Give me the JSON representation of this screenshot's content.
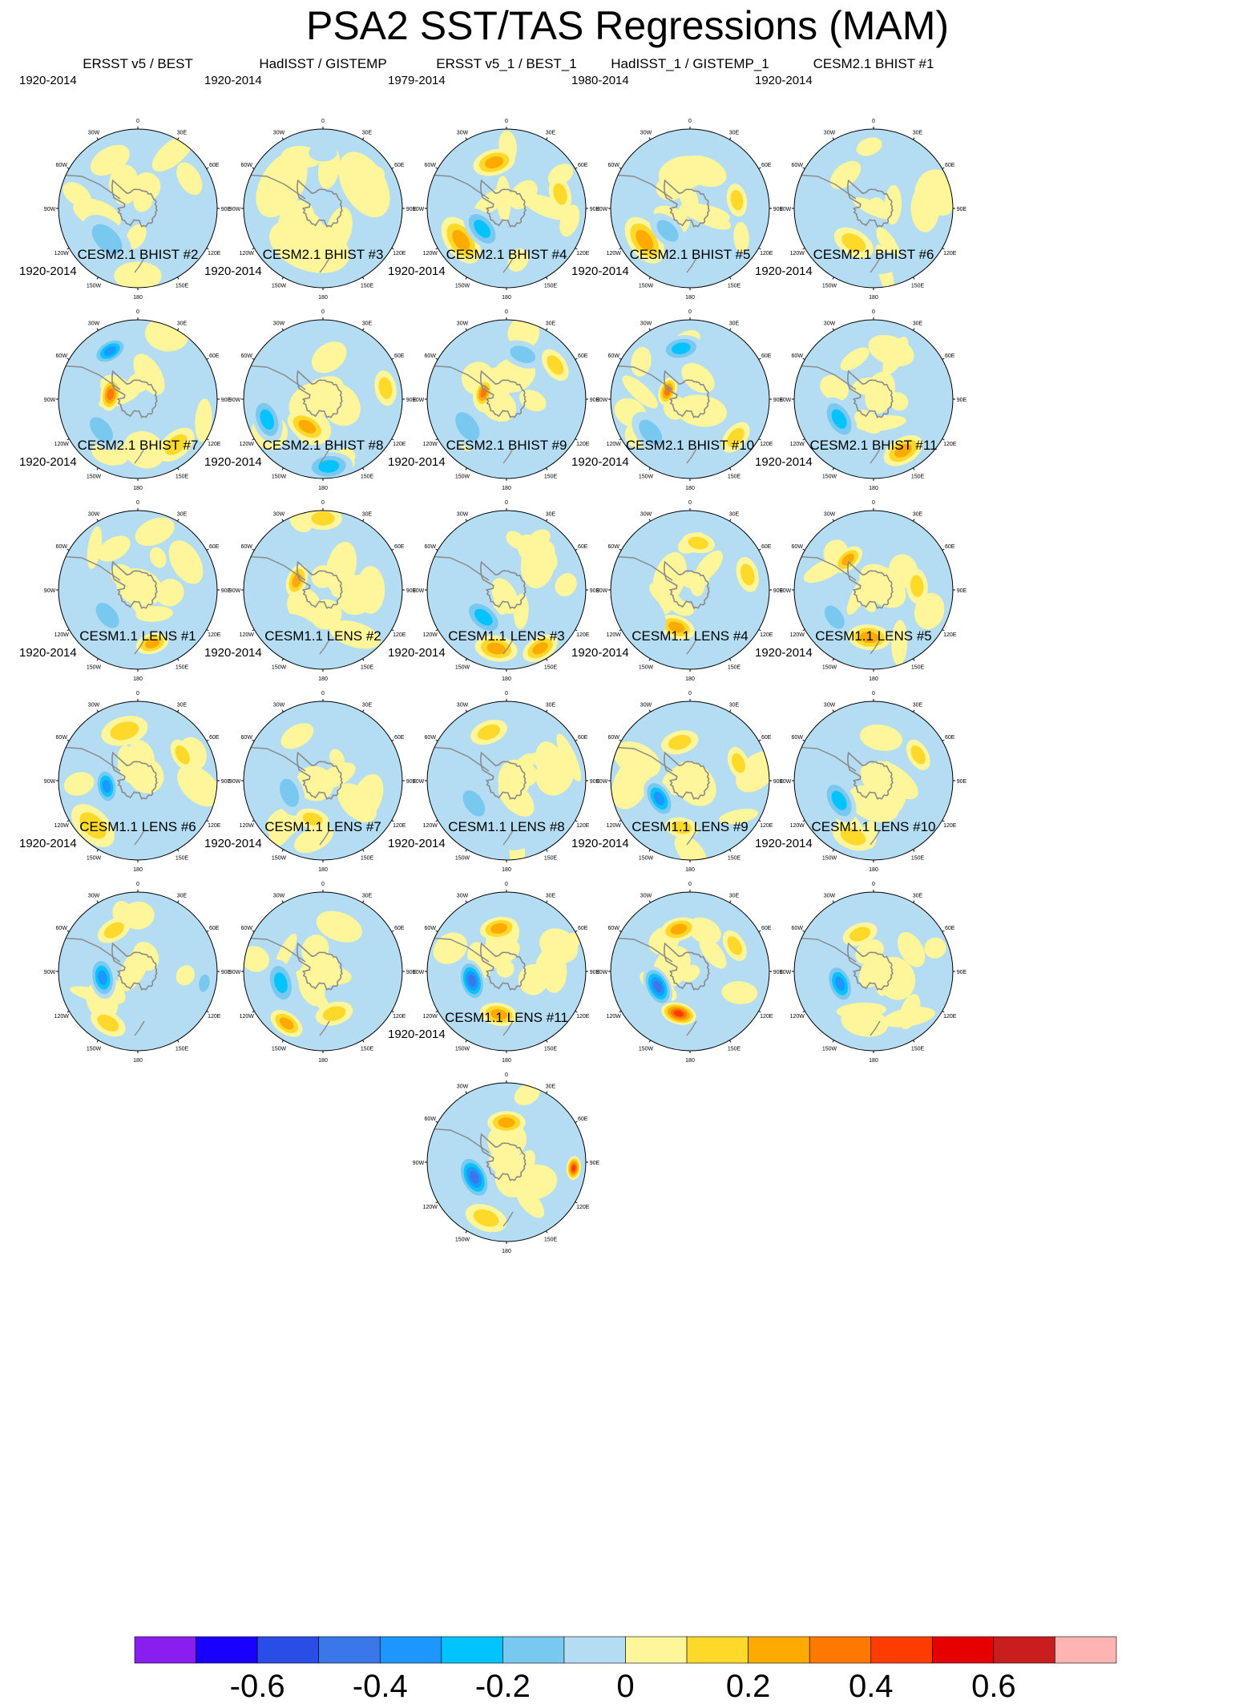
{
  "title": "PSA2 SST/TAS Regressions (MAM)",
  "colors": {
    "coast": "#8a8a8a",
    "outline": "#000000",
    "levels": [
      "#8a1ef0",
      "#1a00ff",
      "#2a4de6",
      "#3a78ea",
      "#1e96ff",
      "#00c3ff",
      "#78c8f0",
      "#b4dcf2",
      "#fff59a",
      "#ffd92a",
      "#ffaa00",
      "#ff7800",
      "#ff3c00",
      "#e60000",
      "#c81e1e",
      "#ffb4b4"
    ]
  },
  "lon_labels": [
    "0",
    "30E",
    "60E",
    "90E",
    "120E",
    "150E",
    "180",
    "150W",
    "120W",
    "90W",
    "60W",
    "30W"
  ],
  "colorbar": {
    "ticks": [
      "-0.6",
      "-0.4",
      "-0.2",
      "0",
      "0.2",
      "0.4",
      "0.6"
    ]
  },
  "chart_data": [
    {
      "type": "heatmap",
      "title": "ERSST v5 / BEST",
      "years": "1920-2014",
      "projection": "south polar stereographic",
      "features": [
        {
          "lon": 225,
          "r": 0.55,
          "level": -0.2,
          "size": 0.25
        },
        {
          "lon": 60,
          "r": 0.75,
          "level": 0.1,
          "size": 0.15
        },
        {
          "lon": 330,
          "r": 0.7,
          "level": 0.1,
          "size": 0.18
        },
        {
          "lon": 180,
          "r": 0.85,
          "level": 0.1,
          "size": 0.2
        }
      ]
    },
    {
      "type": "heatmap",
      "title": "HadISST / GISTEMP",
      "years": "1920-2014",
      "projection": "south polar stereographic",
      "features": [
        {
          "lon": 200,
          "r": 0.5,
          "level": 0.1,
          "size": 0.35
        },
        {
          "lon": 60,
          "r": 0.6,
          "level": 0.1,
          "size": 0.3
        },
        {
          "lon": 300,
          "r": 0.6,
          "level": 0.1,
          "size": 0.3
        },
        {
          "lon": 0,
          "r": 0.7,
          "level": -0.1,
          "size": 0.12
        }
      ]
    },
    {
      "type": "heatmap",
      "title": "ERSST v5_1 / BEST_1",
      "years": "1979-2014",
      "projection": "south polar stereographic",
      "features": [
        {
          "lon": 345,
          "r": 0.6,
          "level": 0.3,
          "size": 0.18
        },
        {
          "lon": 235,
          "r": 0.7,
          "level": 0.3,
          "size": 0.22
        },
        {
          "lon": 230,
          "r": 0.4,
          "level": -0.3,
          "size": 0.2
        },
        {
          "lon": 75,
          "r": 0.7,
          "level": 0.2,
          "size": 0.15
        }
      ]
    },
    {
      "type": "heatmap",
      "title": "HadISST_1 / GISTEMP_1",
      "years": "1980-2014",
      "projection": "south polar stereographic",
      "features": [
        {
          "lon": 235,
          "r": 0.7,
          "level": 0.3,
          "size": 0.22
        },
        {
          "lon": 225,
          "r": 0.4,
          "level": -0.2,
          "size": 0.18
        },
        {
          "lon": 20,
          "r": 0.5,
          "level": 0.1,
          "size": 0.2
        },
        {
          "lon": 80,
          "r": 0.6,
          "level": 0.2,
          "size": 0.14
        }
      ]
    },
    {
      "type": "heatmap",
      "title": "CESM2.1 BHIST #1",
      "years": "1920-2014",
      "projection": "south polar stereographic",
      "features": [
        {
          "lon": 210,
          "r": 0.5,
          "level": 0.2,
          "size": 0.18
        },
        {
          "lon": 90,
          "r": 0.65,
          "level": 0.1,
          "size": 0.2
        },
        {
          "lon": 320,
          "r": 0.55,
          "level": 0.1,
          "size": 0.15
        },
        {
          "lon": 170,
          "r": 0.7,
          "level": -0.1,
          "size": 0.15
        }
      ]
    },
    {
      "type": "heatmap",
      "title": "CESM2.1 BHIST #2",
      "years": "1920-2014",
      "projection": "south polar stereographic",
      "features": [
        {
          "lon": 330,
          "r": 0.7,
          "level": -0.4,
          "size": 0.16
        },
        {
          "lon": 280,
          "r": 0.35,
          "level": 0.4,
          "size": 0.14
        },
        {
          "lon": 230,
          "r": 0.6,
          "level": -0.2,
          "size": 0.2
        },
        {
          "lon": 140,
          "r": 0.75,
          "level": 0.2,
          "size": 0.18
        }
      ]
    },
    {
      "type": "heatmap",
      "title": "CESM2.1 BHIST #3",
      "years": "1920-2014",
      "projection": "south polar stereographic",
      "features": [
        {
          "lon": 250,
          "r": 0.75,
          "level": -0.3,
          "size": 0.2
        },
        {
          "lon": 210,
          "r": 0.4,
          "level": 0.3,
          "size": 0.18
        },
        {
          "lon": 175,
          "r": 0.85,
          "level": -0.3,
          "size": 0.2
        },
        {
          "lon": 80,
          "r": 0.8,
          "level": 0.2,
          "size": 0.15
        }
      ]
    },
    {
      "type": "heatmap",
      "title": "CESM2.1 BHIST #4",
      "years": "1920-2014",
      "projection": "south polar stereographic",
      "features": [
        {
          "lon": 20,
          "r": 0.6,
          "level": -0.2,
          "size": 0.18
        },
        {
          "lon": 285,
          "r": 0.3,
          "level": 0.4,
          "size": 0.12
        },
        {
          "lon": 235,
          "r": 0.6,
          "level": -0.2,
          "size": 0.22
        },
        {
          "lon": 55,
          "r": 0.75,
          "level": 0.2,
          "size": 0.15
        }
      ]
    },
    {
      "type": "heatmap",
      "title": "CESM2.1 BHIST #5",
      "years": "1920-2014",
      "projection": "south polar stereographic",
      "features": [
        {
          "lon": 350,
          "r": 0.65,
          "level": -0.3,
          "size": 0.18
        },
        {
          "lon": 290,
          "r": 0.3,
          "level": 0.4,
          "size": 0.12
        },
        {
          "lon": 230,
          "r": 0.65,
          "level": -0.2,
          "size": 0.2
        },
        {
          "lon": 130,
          "r": 0.75,
          "level": 0.2,
          "size": 0.15
        }
      ]
    },
    {
      "type": "heatmap",
      "title": "CESM2.1 BHIST #6",
      "years": "1920-2014",
      "projection": "south polar stereographic",
      "features": [
        {
          "lon": 240,
          "r": 0.5,
          "level": -0.3,
          "size": 0.2
        },
        {
          "lon": 150,
          "r": 0.75,
          "level": 0.3,
          "size": 0.18
        },
        {
          "lon": 20,
          "r": 0.65,
          "level": 0.1,
          "size": 0.2
        },
        {
          "lon": 100,
          "r": 0.6,
          "level": -0.1,
          "size": 0.15
        }
      ]
    },
    {
      "type": "heatmap",
      "title": "CESM2.1 BHIST #7",
      "years": "1920-2014",
      "projection": "south polar stereographic",
      "features": [
        {
          "lon": 230,
          "r": 0.5,
          "level": -0.2,
          "size": 0.2
        },
        {
          "lon": 165,
          "r": 0.7,
          "level": 0.3,
          "size": 0.14
        },
        {
          "lon": 60,
          "r": 0.7,
          "level": 0.1,
          "size": 0.2
        },
        {
          "lon": 330,
          "r": 0.6,
          "level": 0.1,
          "size": 0.15
        }
      ]
    },
    {
      "type": "heatmap",
      "title": "CESM2.1 BHIST #8",
      "years": "1920-2014",
      "projection": "south polar stereographic",
      "features": [
        {
          "lon": 290,
          "r": 0.35,
          "level": 0.3,
          "size": 0.14
        },
        {
          "lon": 0,
          "r": 0.9,
          "level": 0.2,
          "size": 0.16
        },
        {
          "lon": 210,
          "r": 0.6,
          "level": -0.1,
          "size": 0.2
        },
        {
          "lon": 90,
          "r": 0.6,
          "level": 0.1,
          "size": 0.2
        }
      ]
    },
    {
      "type": "heatmap",
      "title": "CESM2.1 BHIST #9",
      "years": "1920-2014",
      "projection": "south polar stereographic",
      "features": [
        {
          "lon": 220,
          "r": 0.45,
          "level": -0.3,
          "size": 0.2
        },
        {
          "lon": 190,
          "r": 0.75,
          "level": 0.3,
          "size": 0.18
        },
        {
          "lon": 150,
          "r": 0.85,
          "level": 0.3,
          "size": 0.16
        },
        {
          "lon": 40,
          "r": 0.6,
          "level": 0.1,
          "size": 0.2
        }
      ]
    },
    {
      "type": "heatmap",
      "title": "CESM2.1 BHIST #10",
      "years": "1920-2014",
      "projection": "south polar stereographic",
      "features": [
        {
          "lon": 200,
          "r": 0.5,
          "level": 0.3,
          "size": 0.16
        },
        {
          "lon": 240,
          "r": 0.6,
          "level": -0.1,
          "size": 0.2
        },
        {
          "lon": 75,
          "r": 0.75,
          "level": 0.2,
          "size": 0.15
        },
        {
          "lon": 10,
          "r": 0.6,
          "level": 0.2,
          "size": 0.14
        }
      ]
    },
    {
      "type": "heatmap",
      "title": "CESM2.1 BHIST #11",
      "years": "1920-2014",
      "projection": "south polar stereographic",
      "features": [
        {
          "lon": 185,
          "r": 0.6,
          "level": 0.3,
          "size": 0.18
        },
        {
          "lon": 235,
          "r": 0.6,
          "level": -0.2,
          "size": 0.18
        },
        {
          "lon": 320,
          "r": 0.5,
          "level": 0.3,
          "size": 0.14
        },
        {
          "lon": 85,
          "r": 0.55,
          "level": 0.2,
          "size": 0.15
        }
      ]
    },
    {
      "type": "heatmap",
      "title": "CESM1.1 LENS #1",
      "years": "1920-2014",
      "projection": "south polar stereographic",
      "features": [
        {
          "lon": 260,
          "r": 0.4,
          "level": -0.4,
          "size": 0.16
        },
        {
          "lon": 225,
          "r": 0.8,
          "level": 0.2,
          "size": 0.22
        },
        {
          "lon": 345,
          "r": 0.65,
          "level": 0.2,
          "size": 0.2
        },
        {
          "lon": 60,
          "r": 0.65,
          "level": 0.2,
          "size": 0.14
        }
      ]
    },
    {
      "type": "heatmap",
      "title": "CESM1.1 LENS #2",
      "years": "1920-2014",
      "projection": "south polar stereographic",
      "features": [
        {
          "lon": 250,
          "r": 0.45,
          "level": -0.2,
          "size": 0.2
        },
        {
          "lon": 195,
          "r": 0.5,
          "level": 0.2,
          "size": 0.14
        },
        {
          "lon": 330,
          "r": 0.65,
          "level": 0.1,
          "size": 0.15
        },
        {
          "lon": 110,
          "r": 0.6,
          "level": 0.1,
          "size": 0.2
        }
      ]
    },
    {
      "type": "heatmap",
      "title": "CESM1.1 LENS #3",
      "years": "1920-2014",
      "projection": "south polar stereographic",
      "features": [
        {
          "lon": 340,
          "r": 0.65,
          "level": 0.2,
          "size": 0.16
        },
        {
          "lon": 235,
          "r": 0.5,
          "level": -0.2,
          "size": 0.2
        },
        {
          "lon": 170,
          "r": 0.75,
          "level": -0.1,
          "size": 0.15
        },
        {
          "lon": 70,
          "r": 0.6,
          "level": 0.1,
          "size": 0.2
        }
      ]
    },
    {
      "type": "heatmap",
      "title": "CESM1.1 LENS #4",
      "years": "1920-2014",
      "projection": "south polar stereographic",
      "features": [
        {
          "lon": 240,
          "r": 0.45,
          "level": -0.4,
          "size": 0.18
        },
        {
          "lon": 345,
          "r": 0.5,
          "level": 0.2,
          "size": 0.16
        },
        {
          "lon": 190,
          "r": 0.6,
          "level": 0.2,
          "size": 0.14
        },
        {
          "lon": 70,
          "r": 0.65,
          "level": 0.2,
          "size": 0.14
        }
      ]
    },
    {
      "type": "heatmap",
      "title": "CESM1.1 LENS #5",
      "years": "1920-2014",
      "projection": "south polar stereographic",
      "features": [
        {
          "lon": 240,
          "r": 0.5,
          "level": -0.3,
          "size": 0.2
        },
        {
          "lon": 60,
          "r": 0.65,
          "level": 0.2,
          "size": 0.14
        },
        {
          "lon": 200,
          "r": 0.75,
          "level": 0.2,
          "size": 0.18
        },
        {
          "lon": 10,
          "r": 0.55,
          "level": 0.1,
          "size": 0.18
        }
      ]
    },
    {
      "type": "heatmap",
      "title": "CESM1.1 LENS #6",
      "years": "1920-2014",
      "projection": "south polar stereographic",
      "features": [
        {
          "lon": 260,
          "r": 0.45,
          "level": -0.4,
          "size": 0.18
        },
        {
          "lon": 330,
          "r": 0.6,
          "level": 0.2,
          "size": 0.15
        },
        {
          "lon": 210,
          "r": 0.75,
          "level": 0.2,
          "size": 0.16
        },
        {
          "lon": 100,
          "r": 0.85,
          "level": -0.2,
          "size": 0.12
        }
      ]
    },
    {
      "type": "heatmap",
      "title": "CESM1.1 LENS #7",
      "years": "1920-2014",
      "projection": "south polar stereographic",
      "features": [
        {
          "lon": 255,
          "r": 0.55,
          "level": -0.3,
          "size": 0.2
        },
        {
          "lon": 215,
          "r": 0.8,
          "level": 0.3,
          "size": 0.15
        },
        {
          "lon": 165,
          "r": 0.55,
          "level": 0.2,
          "size": 0.16
        },
        {
          "lon": 20,
          "r": 0.6,
          "level": 0.1,
          "size": 0.2
        }
      ]
    },
    {
      "type": "heatmap",
      "title": "CESM1.1 LENS #8",
      "years": "1920-2014",
      "projection": "south polar stereographic",
      "features": [
        {
          "lon": 255,
          "r": 0.45,
          "level": -0.5,
          "size": 0.18
        },
        {
          "lon": 350,
          "r": 0.55,
          "level": 0.3,
          "size": 0.16
        },
        {
          "lon": 190,
          "r": 0.55,
          "level": 0.3,
          "size": 0.16
        },
        {
          "lon": 90,
          "r": 0.6,
          "level": 0.1,
          "size": 0.18
        }
      ]
    },
    {
      "type": "heatmap",
      "title": "CESM1.1 LENS #9",
      "years": "1920-2014",
      "projection": "south polar stereographic",
      "features": [
        {
          "lon": 245,
          "r": 0.45,
          "level": -0.5,
          "size": 0.18
        },
        {
          "lon": 195,
          "r": 0.55,
          "level": 0.5,
          "size": 0.15
        },
        {
          "lon": 345,
          "r": 0.55,
          "level": 0.3,
          "size": 0.16
        },
        {
          "lon": 60,
          "r": 0.65,
          "level": 0.2,
          "size": 0.14
        }
      ]
    },
    {
      "type": "heatmap",
      "title": "CESM1.1 LENS #10",
      "years": "1920-2014",
      "projection": "south polar stereographic",
      "features": [
        {
          "lon": 250,
          "r": 0.45,
          "level": -0.4,
          "size": 0.18
        },
        {
          "lon": 340,
          "r": 0.5,
          "level": 0.2,
          "size": 0.15
        },
        {
          "lon": 190,
          "r": 0.65,
          "level": 0.1,
          "size": 0.2
        },
        {
          "lon": 60,
          "r": 0.55,
          "level": 0.1,
          "size": 0.16
        }
      ]
    },
    {
      "type": "heatmap",
      "title": "CESM1.1 LENS #11",
      "years": "1920-2014",
      "projection": "south polar stereographic",
      "features": [
        {
          "lon": 245,
          "r": 0.45,
          "level": -0.5,
          "size": 0.2
        },
        {
          "lon": 0,
          "r": 0.5,
          "level": 0.3,
          "size": 0.16
        },
        {
          "lon": 95,
          "r": 0.85,
          "level": 0.5,
          "size": 0.1
        },
        {
          "lon": 200,
          "r": 0.75,
          "level": 0.2,
          "size": 0.18
        }
      ]
    }
  ]
}
